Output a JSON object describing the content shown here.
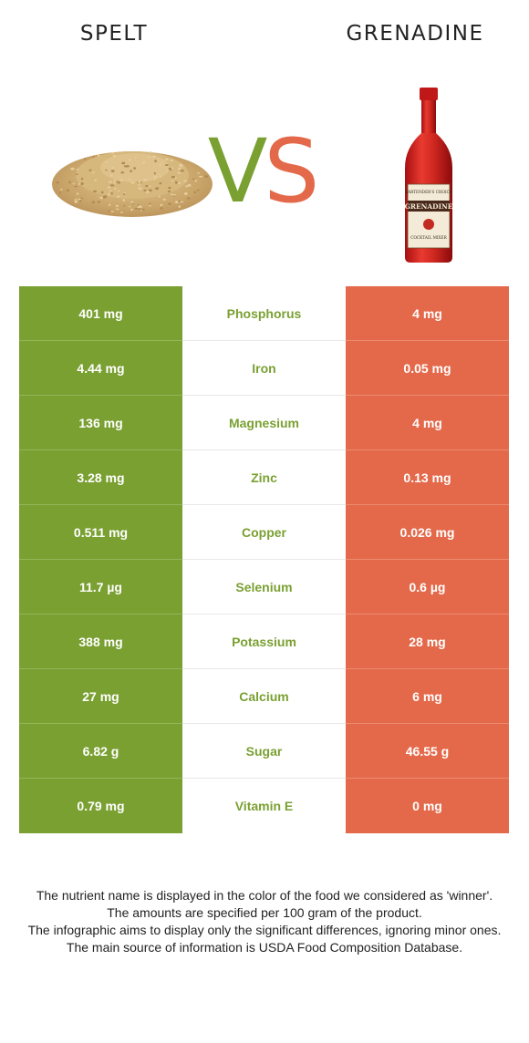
{
  "header": {
    "left_food": "SPELT",
    "right_food": "GRENADINE",
    "vs_v": "V",
    "vs_s": "S"
  },
  "colors": {
    "winner_left": "#7aa032",
    "winner_right": "#e4694a"
  },
  "bottle_label": {
    "brand": "BARTENDER'S CHOICE",
    "name": "GRENADINE",
    "sub": "COCKTAIL MIXER"
  },
  "rows": [
    {
      "left": "401 mg",
      "nutrient": "Phosphorus",
      "right": "4 mg"
    },
    {
      "left": "4.44 mg",
      "nutrient": "Iron",
      "right": "0.05 mg"
    },
    {
      "left": "136 mg",
      "nutrient": "Magnesium",
      "right": "4 mg"
    },
    {
      "left": "3.28 mg",
      "nutrient": "Zinc",
      "right": "0.13 mg"
    },
    {
      "left": "0.511 mg",
      "nutrient": "Copper",
      "right": "0.026 mg"
    },
    {
      "left": "11.7 µg",
      "nutrient": "Selenium",
      "right": "0.6 µg"
    },
    {
      "left": "388 mg",
      "nutrient": "Potassium",
      "right": "28 mg"
    },
    {
      "left": "27 mg",
      "nutrient": "Calcium",
      "right": "6 mg"
    },
    {
      "left": "6.82 g",
      "nutrient": "Sugar",
      "right": "46.55 g"
    },
    {
      "left": "0.79 mg",
      "nutrient": "Vitamin E",
      "right": "0 mg"
    }
  ],
  "footer": {
    "line1": "The nutrient name is displayed in the color of the food we considered as 'winner'.",
    "line2": "The amounts are specified per 100 gram of the product.",
    "line3": "The infographic aims to display only the significant differences, ignoring minor ones.",
    "line4": "The main source of information is USDA Food Composition Database."
  }
}
